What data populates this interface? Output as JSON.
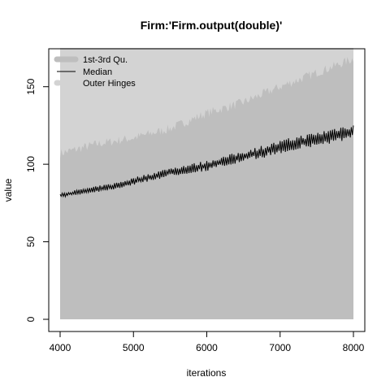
{
  "chart_data": {
    "type": "area",
    "title": "Firm:'Firm.output(double)'",
    "xlabel": "iterations",
    "ylabel": "value",
    "xlim": [
      4000,
      8000
    ],
    "ylim": [
      0,
      175
    ],
    "xticks": [
      "4000",
      "5000",
      "6000",
      "7000",
      "8000"
    ],
    "yticks": [
      "0",
      "50",
      "100",
      "150"
    ],
    "grid": false,
    "legend": {
      "placement": "top-left",
      "entries": [
        "1st-3rd Qu.",
        "Median",
        "Outer Hinges"
      ]
    },
    "colors": {
      "quartile_band": "#bebebe",
      "outer_hinges": "#d3d3d3",
      "median": "#000000"
    },
    "series": [
      {
        "name": "Median",
        "x": [
          4000,
          4250,
          4500,
          4750,
          5000,
          5250,
          5500,
          5750,
          6000,
          6250,
          6500,
          6750,
          7000,
          7250,
          7500,
          7750,
          8000
        ],
        "values": [
          80,
          82,
          84,
          86,
          89,
          92,
          95,
          97,
          99,
          102,
          105,
          108,
          111,
          114,
          116,
          119,
          121
        ]
      },
      {
        "name": "1st-3rd Qu.",
        "x": [
          4000,
          8000
        ],
        "lower": [
          0,
          0
        ],
        "upper": [
          175,
          175
        ]
      },
      {
        "name": "Outer Hinges",
        "x": [
          4000,
          4500,
          5000,
          5500,
          6000,
          6500,
          7000,
          7500,
          8000
        ],
        "lower": [
          0,
          0,
          0,
          0,
          0,
          0,
          0,
          0,
          0
        ],
        "upper": [
          107,
          113,
          117,
          123,
          133,
          140,
          150,
          159,
          168
        ]
      }
    ]
  }
}
